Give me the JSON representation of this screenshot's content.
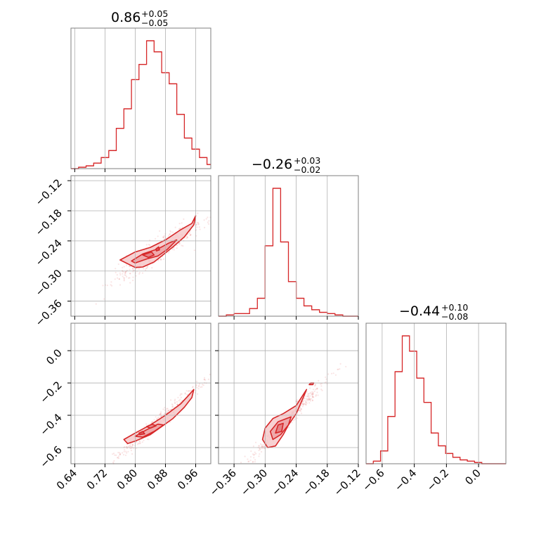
{
  "chart_data": [
    {
      "type": "corner",
      "panel": "hist-0",
      "title": {
        "value": "0.86",
        "plus": "+0.05",
        "minus": "−0.05"
      },
      "xlim": [
        0.63,
        1.0
      ],
      "bin_edges": [
        0.63,
        0.65,
        0.67,
        0.69,
        0.71,
        0.73,
        0.75,
        0.77,
        0.79,
        0.81,
        0.83,
        0.85,
        0.87,
        0.89,
        0.91,
        0.93,
        0.95,
        0.97,
        0.99,
        1.0
      ],
      "counts": [
        0,
        1,
        2,
        4,
        8,
        13,
        29,
        43,
        64,
        75,
        92,
        84,
        69,
        61,
        39,
        22,
        14,
        8,
        3
      ],
      "grid": true
    },
    {
      "type": "corner",
      "panel": "hist-1",
      "title": {
        "value": "−0.26",
        "plus": "+0.03",
        "minus": "−0.02"
      },
      "xlim": [
        -0.39,
        -0.12
      ],
      "bin_edges": [
        -0.39,
        -0.375,
        -0.36,
        -0.345,
        -0.33,
        -0.315,
        -0.3,
        -0.285,
        -0.27,
        -0.255,
        -0.24,
        -0.225,
        -0.21,
        -0.195,
        -0.18,
        -0.165,
        -0.15,
        -0.135,
        -0.12
      ],
      "counts": [
        0,
        1,
        2,
        2,
        6,
        14,
        55,
        100,
        58,
        27,
        14,
        8,
        5,
        3,
        2,
        1,
        0,
        0
      ],
      "grid": true
    },
    {
      "type": "corner",
      "panel": "hist-2",
      "title": {
        "value": "−0.44",
        "plus": "+0.10",
        "minus": "−0.08"
      },
      "xlim": [
        -0.7,
        0.17
      ],
      "bin_edges": [
        -0.7,
        -0.655,
        -0.61,
        -0.565,
        -0.52,
        -0.475,
        -0.43,
        -0.385,
        -0.34,
        -0.295,
        -0.25,
        -0.205,
        -0.16,
        -0.115,
        -0.07,
        -0.025,
        0.02,
        0.065,
        0.11,
        0.17
      ],
      "counts": [
        0,
        2,
        10,
        37,
        72,
        100,
        88,
        67,
        48,
        24,
        14,
        8,
        5,
        3,
        2,
        1,
        0,
        0,
        0
      ],
      "grid": true
    },
    {
      "type": "corner",
      "panel": "contour-1-0",
      "xlim": [
        0.63,
        1.0
      ],
      "ylim": [
        -0.39,
        -0.11
      ],
      "xticks": [
        "0.64",
        "0.72",
        "0.80",
        "0.88",
        "0.96"
      ],
      "yticks": [
        "−0.12",
        "−0.18",
        "−0.24",
        "−0.30",
        "−0.36"
      ],
      "contours": [
        [
          [
            0.76,
            -0.278
          ],
          [
            0.8,
            -0.262
          ],
          [
            0.84,
            -0.253
          ],
          [
            0.88,
            -0.238
          ],
          [
            0.92,
            -0.218
          ],
          [
            0.95,
            -0.205
          ],
          [
            0.96,
            -0.19
          ],
          [
            0.955,
            -0.208
          ],
          [
            0.93,
            -0.232
          ],
          [
            0.9,
            -0.252
          ],
          [
            0.87,
            -0.27
          ],
          [
            0.85,
            -0.282
          ],
          [
            0.82,
            -0.292
          ],
          [
            0.8,
            -0.293
          ]
        ],
        [
          [
            0.79,
            -0.28
          ],
          [
            0.82,
            -0.266
          ],
          [
            0.86,
            -0.256
          ],
          [
            0.89,
            -0.244
          ],
          [
            0.91,
            -0.238
          ],
          [
            0.885,
            -0.257
          ],
          [
            0.86,
            -0.27
          ],
          [
            0.83,
            -0.276
          ],
          [
            0.8,
            -0.284
          ]
        ],
        [
          [
            0.82,
            -0.268
          ],
          [
            0.843,
            -0.262
          ],
          [
            0.85,
            -0.268
          ],
          [
            0.835,
            -0.273
          ]
        ],
        [
          [
            0.855,
            -0.256
          ],
          [
            0.862,
            -0.252
          ],
          [
            0.864,
            -0.258
          ],
          [
            0.856,
            -0.26
          ]
        ]
      ],
      "scatter_seed": 11
    },
    {
      "type": "corner",
      "panel": "contour-2-0",
      "xlim": [
        0.63,
        1.0
      ],
      "ylim": [
        -0.7,
        0.17
      ],
      "yticks": [
        "0.0",
        "−0.2",
        "−0.4",
        "−0.6"
      ],
      "contours": [
        [
          [
            0.77,
            -0.55
          ],
          [
            0.8,
            -0.51
          ],
          [
            0.84,
            -0.46
          ],
          [
            0.88,
            -0.4
          ],
          [
            0.92,
            -0.33
          ],
          [
            0.94,
            -0.28
          ],
          [
            0.955,
            -0.24
          ],
          [
            0.95,
            -0.29
          ],
          [
            0.93,
            -0.35
          ],
          [
            0.9,
            -0.42
          ],
          [
            0.87,
            -0.47
          ],
          [
            0.84,
            -0.52
          ],
          [
            0.8,
            -0.56
          ],
          [
            0.78,
            -0.575
          ]
        ],
        [
          [
            0.8,
            -0.53
          ],
          [
            0.83,
            -0.49
          ],
          [
            0.86,
            -0.455
          ],
          [
            0.875,
            -0.46
          ],
          [
            0.85,
            -0.5
          ],
          [
            0.82,
            -0.535
          ]
        ],
        [
          [
            0.83,
            -0.47
          ],
          [
            0.845,
            -0.455
          ],
          [
            0.855,
            -0.465
          ],
          [
            0.84,
            -0.48
          ]
        ],
        [
          [
            0.81,
            -0.51
          ],
          [
            0.82,
            -0.5
          ],
          [
            0.825,
            -0.515
          ],
          [
            0.812,
            -0.52
          ]
        ]
      ],
      "scatter_seed": 23
    },
    {
      "type": "corner",
      "panel": "contour-2-1",
      "xlim": [
        -0.39,
        -0.12
      ],
      "ylim": [
        -0.7,
        0.17
      ],
      "xticks": [
        "−0.36",
        "−0.30",
        "−0.24",
        "−0.18",
        "−0.12"
      ],
      "contours": [
        [
          [
            -0.295,
            -0.6
          ],
          [
            -0.305,
            -0.55
          ],
          [
            -0.3,
            -0.48
          ],
          [
            -0.285,
            -0.42
          ],
          [
            -0.265,
            -0.39
          ],
          [
            -0.24,
            -0.34
          ],
          [
            -0.22,
            -0.24
          ],
          [
            -0.225,
            -0.28
          ],
          [
            -0.24,
            -0.39
          ],
          [
            -0.255,
            -0.46
          ],
          [
            -0.265,
            -0.52
          ],
          [
            -0.28,
            -0.59
          ]
        ],
        [
          [
            -0.285,
            -0.55
          ],
          [
            -0.29,
            -0.5
          ],
          [
            -0.275,
            -0.44
          ],
          [
            -0.25,
            -0.41
          ],
          [
            -0.255,
            -0.46
          ],
          [
            -0.27,
            -0.52
          ]
        ],
        [
          [
            -0.28,
            -0.51
          ],
          [
            -0.275,
            -0.46
          ],
          [
            -0.265,
            -0.45
          ],
          [
            -0.268,
            -0.5
          ]
        ],
        [
          [
            -0.215,
            -0.21
          ],
          [
            -0.212,
            -0.2
          ],
          [
            -0.206,
            -0.2
          ],
          [
            -0.208,
            -0.21
          ]
        ]
      ],
      "scatter_seed": 37
    },
    {
      "type": "corner",
      "panel": "xaxis-2",
      "xticks": [
        "−0.6",
        "−0.4",
        "−0.2",
        "0.0"
      ]
    }
  ]
}
